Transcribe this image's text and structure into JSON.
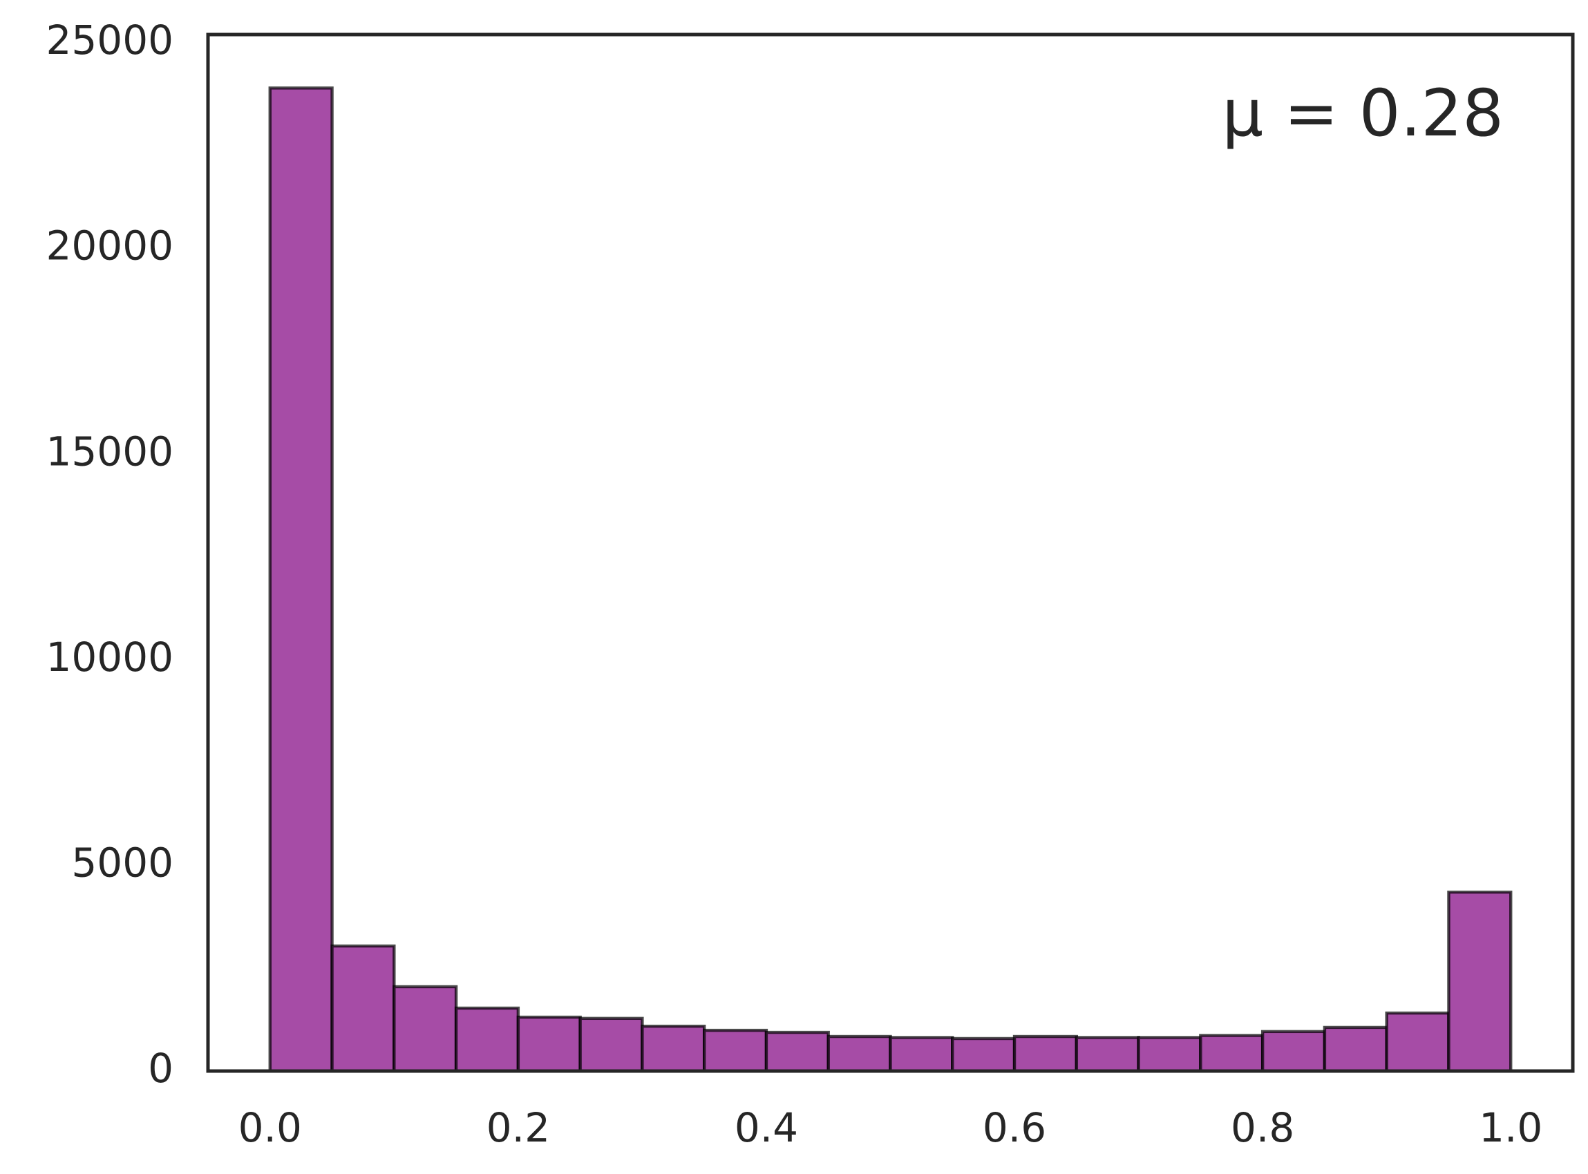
{
  "chart_data": {
    "type": "histogram",
    "annotation": "μ = 0.28",
    "bins": [
      0.0,
      0.05,
      0.1,
      0.15,
      0.2,
      0.25,
      0.3,
      0.35,
      0.4,
      0.45,
      0.5,
      0.55,
      0.6,
      0.65,
      0.7,
      0.75,
      0.8,
      0.85,
      0.9,
      0.95,
      1.0
    ],
    "counts": [
      23900,
      3040,
      2050,
      1530,
      1310,
      1280,
      1090,
      990,
      940,
      840,
      815,
      790,
      840,
      815,
      815,
      865,
      960,
      1060,
      1410,
      4350
    ],
    "color": "#a64ca6",
    "xlim": [
      -0.05,
      1.05
    ],
    "xticks": [
      {
        "value": 0,
        "label": "0.0"
      },
      0.2,
      0.4,
      0.6,
      0.8,
      {
        "value": 1,
        "label": "1.0"
      }
    ],
    "ylim": [
      0,
      25200
    ],
    "yticks": [
      0,
      5000,
      10000,
      15000,
      20000,
      25000
    ]
  }
}
